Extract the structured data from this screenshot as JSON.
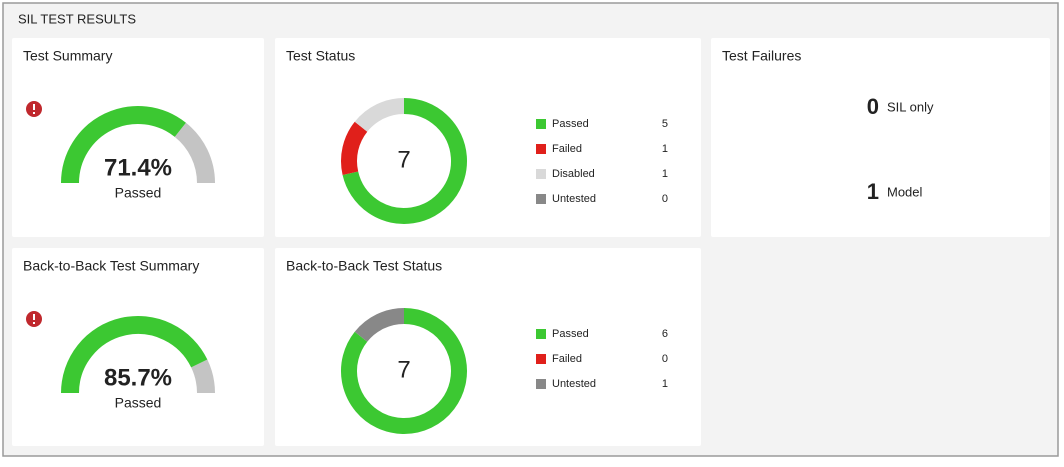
{
  "header": {
    "title": "SIL TEST RESULTS"
  },
  "panels": [
    {
      "title": "Test Summary",
      "kind": "gauge",
      "value": 71.4,
      "value_label": "71.4%",
      "caption": "Passed",
      "range": [
        0,
        100
      ],
      "color": "#3cc832",
      "track_color": "#c4c4c4",
      "warning": true
    },
    {
      "title": "Test Status",
      "kind": "donut",
      "total": 7,
      "categories": [
        "Passed",
        "Failed",
        "Disabled",
        "Untested"
      ],
      "values": [
        5,
        1,
        1,
        0
      ],
      "colors": [
        "#3cc832",
        "#e0201b",
        "#d9d9d9",
        "#888888"
      ]
    },
    {
      "title": "Test Failures",
      "kind": "counts",
      "items": [
        {
          "count": 0,
          "label": "SIL only"
        },
        {
          "count": 1,
          "label": "Model"
        }
      ]
    },
    {
      "title": "Back-to-Back Test Summary",
      "kind": "gauge",
      "value": 85.7,
      "value_label": "85.7%",
      "caption": "Passed",
      "range": [
        0,
        100
      ],
      "color": "#3cc832",
      "track_color": "#c4c4c4",
      "warning": true
    },
    {
      "title": "Back-to-Back Test Status",
      "kind": "donut",
      "total": 7,
      "categories": [
        "Passed",
        "Failed",
        "Untested"
      ],
      "values": [
        6,
        0,
        1
      ],
      "colors": [
        "#3cc832",
        "#e0201b",
        "#888888"
      ]
    }
  ]
}
